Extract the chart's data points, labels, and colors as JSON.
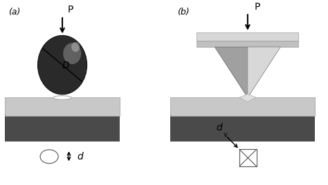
{
  "bg_color": "#ffffff",
  "panel_a_label": "(a)",
  "panel_b_label": "(b)",
  "p_label": "P",
  "d_label": "d",
  "D_label": "D",
  "block_color_dark": "#4a4a4a",
  "block_color_light": "#c8c8c8",
  "sphere_color_dark": "#2a2a2a",
  "indenter_light": "#d8d8d8",
  "indenter_mid": "#c0c0c0",
  "indenter_dark": "#a0a0a0"
}
